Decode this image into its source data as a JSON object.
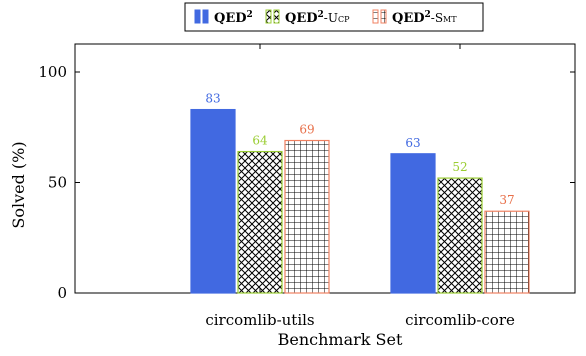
{
  "chart_data": {
    "type": "bar",
    "categories": [
      "circomlib-utils",
      "circomlib-core"
    ],
    "series": [
      {
        "name": "QED²",
        "name_main": "QED",
        "name_sup": "2",
        "name_suffix": "",
        "values": [
          83,
          63
        ],
        "fill": "#4169e1",
        "stroke": "#4169e1",
        "label_color": "#4169e1",
        "pattern": "solid"
      },
      {
        "name": "QED²-Ucp",
        "name_main": "QED",
        "name_sup": "2",
        "name_suffix": "-Ucp",
        "values": [
          64,
          52
        ],
        "fill": "#ffffff",
        "stroke": "#9acd32",
        "label_color": "#9acd32",
        "pattern": "crosshatch"
      },
      {
        "name": "QED²-Smt",
        "name_main": "QED",
        "name_sup": "2",
        "name_suffix": "-Smt",
        "values": [
          69,
          37
        ],
        "fill": "#ffffff",
        "stroke": "#f08060",
        "label_color": "#e8704a",
        "pattern": "grid"
      }
    ],
    "xlabel": "Benchmark Set",
    "ylabel": "Solved (%)",
    "ylim": [
      0,
      100
    ],
    "yticks": [
      "0",
      "50",
      "100"
    ],
    "grid": false,
    "legend_position": "top-center"
  }
}
